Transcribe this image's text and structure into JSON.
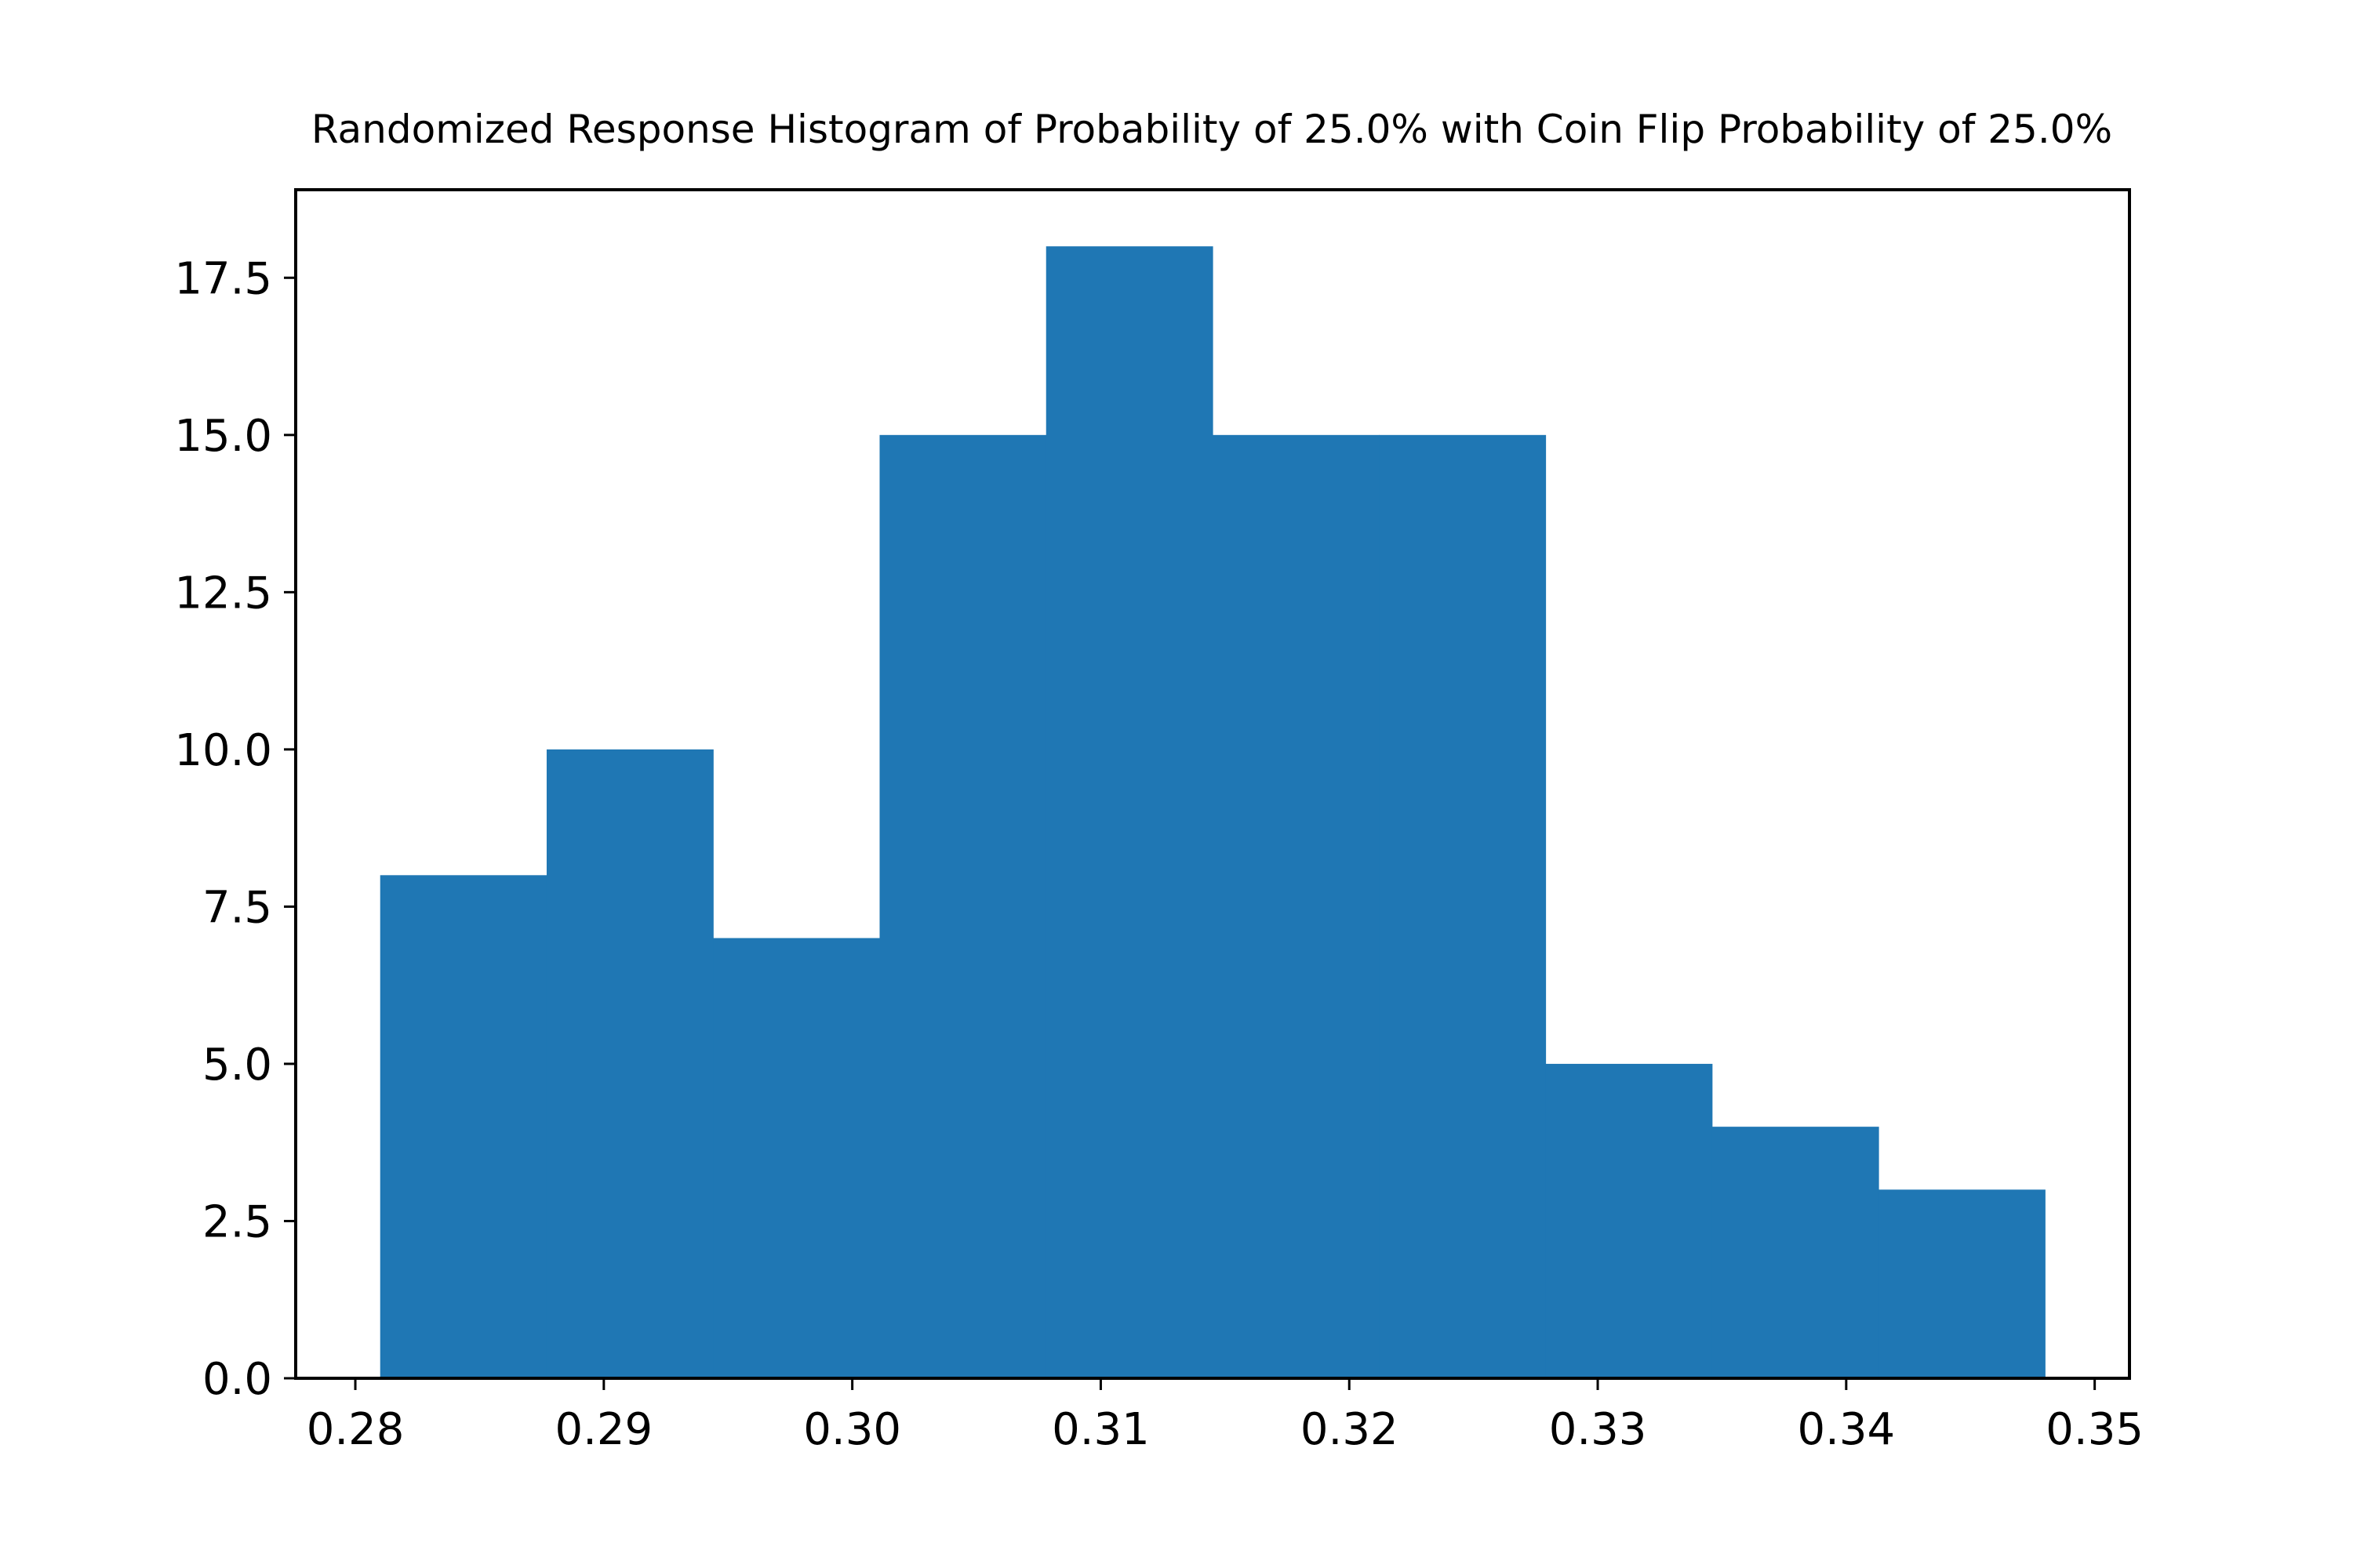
{
  "chart_data": {
    "type": "bar",
    "title": "Randomized Response Histogram of Probability of 25.0% with Coin Flip Probability of 25.0%",
    "xlabel": "",
    "ylabel": "",
    "bins": [
      {
        "start": 0.281,
        "end": 0.2877,
        "count": 8
      },
      {
        "start": 0.2877,
        "end": 0.2944,
        "count": 10
      },
      {
        "start": 0.2944,
        "end": 0.3011,
        "count": 7
      },
      {
        "start": 0.3011,
        "end": 0.3078,
        "count": 15
      },
      {
        "start": 0.3078,
        "end": 0.3145,
        "count": 18
      },
      {
        "start": 0.3145,
        "end": 0.3212,
        "count": 15
      },
      {
        "start": 0.3212,
        "end": 0.3279,
        "count": 15
      },
      {
        "start": 0.3279,
        "end": 0.3346,
        "count": 5
      },
      {
        "start": 0.3346,
        "end": 0.3413,
        "count": 4
      },
      {
        "start": 0.3413,
        "end": 0.348,
        "count": 3
      }
    ],
    "xlim": [
      0.2776,
      0.3514
    ],
    "ylim": [
      0,
      18.9
    ],
    "x_ticks": [
      {
        "value": 0.28,
        "label": "0.28"
      },
      {
        "value": 0.29,
        "label": "0.29"
      },
      {
        "value": 0.3,
        "label": "0.30"
      },
      {
        "value": 0.31,
        "label": "0.31"
      },
      {
        "value": 0.32,
        "label": "0.32"
      },
      {
        "value": 0.33,
        "label": "0.33"
      },
      {
        "value": 0.34,
        "label": "0.34"
      },
      {
        "value": 0.35,
        "label": "0.35"
      }
    ],
    "y_ticks": [
      {
        "value": 0.0,
        "label": "0.0"
      },
      {
        "value": 2.5,
        "label": "2.5"
      },
      {
        "value": 5.0,
        "label": "5.0"
      },
      {
        "value": 7.5,
        "label": "7.5"
      },
      {
        "value": 10.0,
        "label": "10.0"
      },
      {
        "value": 12.5,
        "label": "12.5"
      },
      {
        "value": 15.0,
        "label": "15.0"
      },
      {
        "value": 17.5,
        "label": "17.5"
      }
    ],
    "bar_color": "#1f77b4",
    "grid": false,
    "legend": "none"
  }
}
